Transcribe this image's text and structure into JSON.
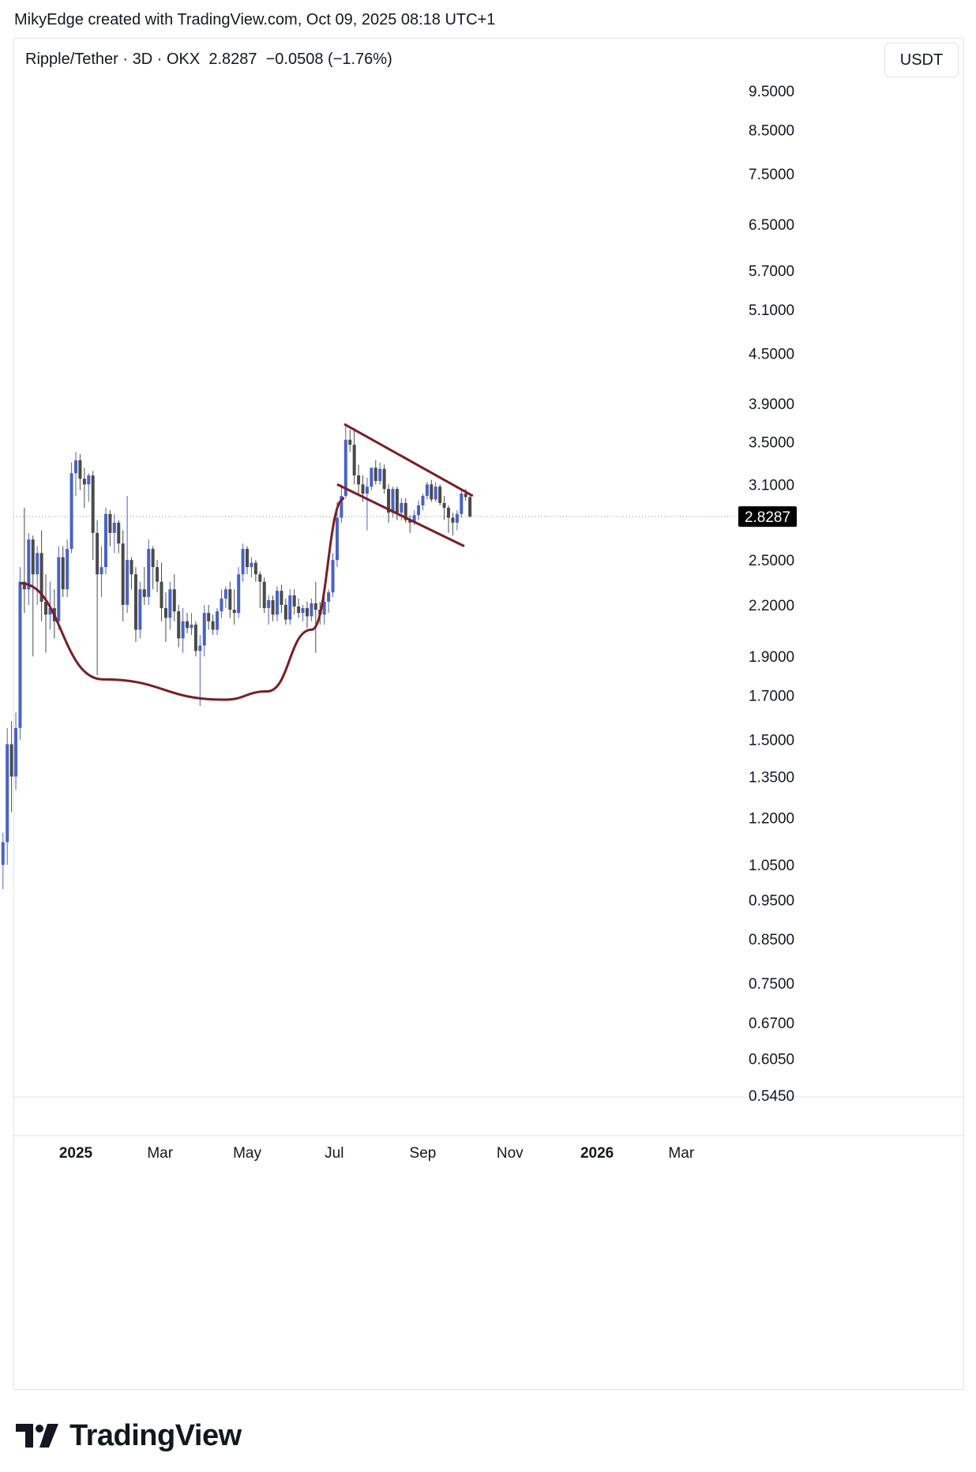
{
  "attribution": "MikyEdge created with TradingView.com, Oct 09, 2025 08:18 UTC+1",
  "legend": {
    "symbol": "Ripple/Tether · 3D · OKX",
    "last": "2.8287",
    "change": "−0.0508 (−1.76%)"
  },
  "currency_button": "USDT",
  "brand": "TradingView",
  "colors": {
    "up": "#4a62c4",
    "down": "#4a4a4a",
    "pattern": "#7a1e24",
    "price_label_bg": "#000000"
  },
  "chart_data": {
    "type": "candlestick",
    "scale": "log",
    "ylim": [
      0.545,
      9.5
    ],
    "y_ticks": [
      "9.5000",
      "8.5000",
      "7.5000",
      "6.5000",
      "5.7000",
      "5.1000",
      "4.5000",
      "3.9000",
      "3.5000",
      "3.1000",
      "2.5000",
      "2.2000",
      "1.9000",
      "1.7000",
      "1.5000",
      "1.3500",
      "1.2000",
      "1.0500",
      "0.9500",
      "0.8500",
      "0.7500",
      "0.6700",
      "0.6050",
      "0.5450"
    ],
    "x_ticks": [
      {
        "label": "2025",
        "date": "2025-01-01",
        "bold": true
      },
      {
        "label": "Mar",
        "date": "2025-03-01",
        "bold": false
      },
      {
        "label": "May",
        "date": "2025-05-01",
        "bold": false
      },
      {
        "label": "Jul",
        "date": "2025-07-01",
        "bold": false
      },
      {
        "label": "Sep",
        "date": "2025-09-01",
        "bold": false
      },
      {
        "label": "Nov",
        "date": "2025-11-01",
        "bold": false
      },
      {
        "label": "2026",
        "date": "2026-01-01",
        "bold": true
      },
      {
        "label": "Mar",
        "date": "2026-03-01",
        "bold": false
      }
    ],
    "last_price": 2.8287,
    "last_price_label": "2.8287",
    "candles": [
      {
        "date": "2024-11-11",
        "open": 1.05,
        "high": 1.15,
        "low": 0.98,
        "close": 1.12
      },
      {
        "date": "2024-11-14",
        "open": 1.12,
        "high": 1.55,
        "low": 1.05,
        "close": 1.48
      },
      {
        "date": "2024-11-17",
        "open": 1.48,
        "high": 1.58,
        "low": 1.22,
        "close": 1.35
      },
      {
        "date": "2024-11-20",
        "open": 1.35,
        "high": 1.62,
        "low": 1.3,
        "close": 1.55
      },
      {
        "date": "2024-11-23",
        "open": 1.55,
        "high": 2.45,
        "low": 1.5,
        "close": 2.35
      },
      {
        "date": "2024-11-26",
        "open": 2.35,
        "high": 2.9,
        "low": 2.15,
        "close": 2.3
      },
      {
        "date": "2024-11-29",
        "open": 2.3,
        "high": 2.7,
        "low": 2.2,
        "close": 2.65
      },
      {
        "date": "2024-12-02",
        "open": 2.65,
        "high": 2.68,
        "low": 1.9,
        "close": 2.4
      },
      {
        "date": "2024-12-05",
        "open": 2.4,
        "high": 2.6,
        "low": 2.2,
        "close": 2.55
      },
      {
        "date": "2024-12-08",
        "open": 2.55,
        "high": 2.72,
        "low": 2.1,
        "close": 2.22
      },
      {
        "date": "2024-12-11",
        "open": 2.22,
        "high": 2.4,
        "low": 1.92,
        "close": 2.14
      },
      {
        "date": "2024-12-14",
        "open": 2.14,
        "high": 2.35,
        "low": 2.05,
        "close": 2.18
      },
      {
        "date": "2024-12-17",
        "open": 2.18,
        "high": 2.3,
        "low": 2.0,
        "close": 2.1
      },
      {
        "date": "2024-12-20",
        "open": 2.1,
        "high": 2.6,
        "low": 2.05,
        "close": 2.52
      },
      {
        "date": "2024-12-23",
        "open": 2.52,
        "high": 2.6,
        "low": 2.25,
        "close": 2.3
      },
      {
        "date": "2024-12-26",
        "open": 2.3,
        "high": 2.65,
        "low": 2.25,
        "close": 2.58
      },
      {
        "date": "2024-12-29",
        "open": 2.58,
        "high": 3.3,
        "low": 2.55,
        "close": 3.2
      },
      {
        "date": "2025-01-01",
        "open": 3.2,
        "high": 3.4,
        "low": 3.0,
        "close": 3.32
      },
      {
        "date": "2025-01-04",
        "open": 3.32,
        "high": 3.38,
        "low": 3.05,
        "close": 3.15
      },
      {
        "date": "2025-01-07",
        "open": 3.15,
        "high": 3.25,
        "low": 2.9,
        "close": 3.1
      },
      {
        "date": "2025-01-10",
        "open": 3.1,
        "high": 3.2,
        "low": 2.95,
        "close": 3.18
      },
      {
        "date": "2025-01-13",
        "open": 3.18,
        "high": 3.22,
        "low": 2.5,
        "close": 2.7
      },
      {
        "date": "2025-01-16",
        "open": 2.7,
        "high": 2.8,
        "low": 1.8,
        "close": 2.4
      },
      {
        "date": "2025-01-19",
        "open": 2.4,
        "high": 2.6,
        "low": 2.25,
        "close": 2.45
      },
      {
        "date": "2025-01-22",
        "open": 2.45,
        "high": 2.9,
        "low": 2.4,
        "close": 2.85
      },
      {
        "date": "2025-01-25",
        "open": 2.85,
        "high": 2.88,
        "low": 2.6,
        "close": 2.7
      },
      {
        "date": "2025-01-28",
        "open": 2.7,
        "high": 2.85,
        "low": 2.55,
        "close": 2.78
      },
      {
        "date": "2025-01-31",
        "open": 2.78,
        "high": 2.8,
        "low": 2.55,
        "close": 2.62
      },
      {
        "date": "2025-02-03",
        "open": 2.62,
        "high": 2.72,
        "low": 2.1,
        "close": 2.2
      },
      {
        "date": "2025-02-06",
        "open": 2.2,
        "high": 3.0,
        "low": 2.15,
        "close": 2.5
      },
      {
        "date": "2025-02-09",
        "open": 2.5,
        "high": 2.52,
        "low": 2.3,
        "close": 2.4
      },
      {
        "date": "2025-02-12",
        "open": 2.4,
        "high": 2.45,
        "low": 1.98,
        "close": 2.05
      },
      {
        "date": "2025-02-15",
        "open": 2.05,
        "high": 2.35,
        "low": 2.0,
        "close": 2.3
      },
      {
        "date": "2025-02-18",
        "open": 2.3,
        "high": 2.45,
        "low": 2.2,
        "close": 2.25
      },
      {
        "date": "2025-02-21",
        "open": 2.25,
        "high": 2.65,
        "low": 2.2,
        "close": 2.58
      },
      {
        "date": "2025-02-24",
        "open": 2.58,
        "high": 2.6,
        "low": 2.3,
        "close": 2.45
      },
      {
        "date": "2025-02-27",
        "open": 2.45,
        "high": 2.5,
        "low": 2.28,
        "close": 2.35
      },
      {
        "date": "2025-03-02",
        "open": 2.35,
        "high": 2.48,
        "low": 2.1,
        "close": 2.18
      },
      {
        "date": "2025-03-05",
        "open": 2.18,
        "high": 2.28,
        "low": 1.98,
        "close": 2.12
      },
      {
        "date": "2025-03-08",
        "open": 2.12,
        "high": 2.35,
        "low": 2.05,
        "close": 2.3
      },
      {
        "date": "2025-03-11",
        "open": 2.3,
        "high": 2.4,
        "low": 2.1,
        "close": 2.16
      },
      {
        "date": "2025-03-14",
        "open": 2.16,
        "high": 2.2,
        "low": 1.95,
        "close": 2.0
      },
      {
        "date": "2025-03-17",
        "open": 2.0,
        "high": 2.18,
        "low": 1.92,
        "close": 2.1
      },
      {
        "date": "2025-03-20",
        "open": 2.1,
        "high": 2.15,
        "low": 2.03,
        "close": 2.06
      },
      {
        "date": "2025-03-23",
        "open": 2.06,
        "high": 2.15,
        "low": 2.02,
        "close": 2.08
      },
      {
        "date": "2025-03-26",
        "open": 2.08,
        "high": 2.1,
        "low": 1.9,
        "close": 1.93
      },
      {
        "date": "2025-03-29",
        "open": 1.93,
        "high": 2.02,
        "low": 1.65,
        "close": 1.96
      },
      {
        "date": "2025-04-01",
        "open": 1.96,
        "high": 2.2,
        "low": 1.9,
        "close": 2.15
      },
      {
        "date": "2025-04-04",
        "open": 2.15,
        "high": 2.2,
        "low": 2.05,
        "close": 2.1
      },
      {
        "date": "2025-04-07",
        "open": 2.1,
        "high": 2.14,
        "low": 2.02,
        "close": 2.05
      },
      {
        "date": "2025-04-10",
        "open": 2.05,
        "high": 2.18,
        "low": 2.02,
        "close": 2.16
      },
      {
        "date": "2025-04-13",
        "open": 2.16,
        "high": 2.3,
        "low": 2.12,
        "close": 2.24
      },
      {
        "date": "2025-04-16",
        "open": 2.24,
        "high": 2.32,
        "low": 2.18,
        "close": 2.3
      },
      {
        "date": "2025-04-19",
        "open": 2.3,
        "high": 2.35,
        "low": 2.12,
        "close": 2.17
      },
      {
        "date": "2025-04-22",
        "open": 2.17,
        "high": 2.3,
        "low": 2.08,
        "close": 2.15
      },
      {
        "date": "2025-04-25",
        "open": 2.15,
        "high": 2.45,
        "low": 2.12,
        "close": 2.4
      },
      {
        "date": "2025-04-28",
        "open": 2.4,
        "high": 2.62,
        "low": 2.35,
        "close": 2.58
      },
      {
        "date": "2025-05-01",
        "open": 2.58,
        "high": 2.6,
        "low": 2.4,
        "close": 2.45
      },
      {
        "date": "2025-05-04",
        "open": 2.45,
        "high": 2.52,
        "low": 2.38,
        "close": 2.48
      },
      {
        "date": "2025-05-07",
        "open": 2.48,
        "high": 2.5,
        "low": 2.35,
        "close": 2.4
      },
      {
        "date": "2025-05-10",
        "open": 2.4,
        "high": 2.42,
        "low": 2.18,
        "close": 2.35
      },
      {
        "date": "2025-05-13",
        "open": 2.35,
        "high": 2.38,
        "low": 2.15,
        "close": 2.18
      },
      {
        "date": "2025-05-16",
        "open": 2.18,
        "high": 2.26,
        "low": 2.08,
        "close": 2.23
      },
      {
        "date": "2025-05-19",
        "open": 2.23,
        "high": 2.26,
        "low": 2.1,
        "close": 2.14
      },
      {
        "date": "2025-05-22",
        "open": 2.14,
        "high": 2.32,
        "low": 2.1,
        "close": 2.29
      },
      {
        "date": "2025-05-25",
        "open": 2.29,
        "high": 2.33,
        "low": 2.15,
        "close": 2.2
      },
      {
        "date": "2025-05-28",
        "open": 2.2,
        "high": 2.24,
        "low": 2.08,
        "close": 2.11
      },
      {
        "date": "2025-05-31",
        "open": 2.11,
        "high": 2.3,
        "low": 2.08,
        "close": 2.26
      },
      {
        "date": "2025-06-03",
        "open": 2.26,
        "high": 2.3,
        "low": 2.14,
        "close": 2.19
      },
      {
        "date": "2025-06-06",
        "open": 2.19,
        "high": 2.24,
        "low": 2.12,
        "close": 2.15
      },
      {
        "date": "2025-06-09",
        "open": 2.15,
        "high": 2.2,
        "low": 2.1,
        "close": 2.18
      },
      {
        "date": "2025-06-12",
        "open": 2.18,
        "high": 2.22,
        "low": 2.06,
        "close": 2.13
      },
      {
        "date": "2025-06-15",
        "open": 2.13,
        "high": 2.24,
        "low": 2.1,
        "close": 2.21
      },
      {
        "date": "2025-06-18",
        "open": 2.21,
        "high": 2.35,
        "low": 1.92,
        "close": 2.17
      },
      {
        "date": "2025-06-21",
        "open": 2.17,
        "high": 2.22,
        "low": 2.08,
        "close": 2.14
      },
      {
        "date": "2025-06-24",
        "open": 2.14,
        "high": 2.25,
        "low": 2.08,
        "close": 2.22
      },
      {
        "date": "2025-06-27",
        "open": 2.22,
        "high": 2.3,
        "low": 2.15,
        "close": 2.28
      },
      {
        "date": "2025-06-30",
        "open": 2.28,
        "high": 2.55,
        "low": 2.25,
        "close": 2.5
      },
      {
        "date": "2025-07-03",
        "open": 2.5,
        "high": 2.95,
        "low": 2.45,
        "close": 2.82
      },
      {
        "date": "2025-07-06",
        "open": 2.82,
        "high": 3.1,
        "low": 2.78,
        "close": 3.0
      },
      {
        "date": "2025-07-09",
        "open": 3.0,
        "high": 3.66,
        "low": 2.98,
        "close": 3.52
      },
      {
        "date": "2025-07-12",
        "open": 3.52,
        "high": 3.62,
        "low": 3.4,
        "close": 3.47
      },
      {
        "date": "2025-07-15",
        "open": 3.47,
        "high": 3.64,
        "low": 3.1,
        "close": 3.18
      },
      {
        "date": "2025-07-18",
        "open": 3.18,
        "high": 3.28,
        "low": 3.0,
        "close": 3.1
      },
      {
        "date": "2025-07-21",
        "open": 3.1,
        "high": 3.18,
        "low": 2.95,
        "close": 3.02
      },
      {
        "date": "2025-07-24",
        "open": 3.02,
        "high": 3.16,
        "low": 2.72,
        "close": 3.08
      },
      {
        "date": "2025-07-27",
        "open": 3.08,
        "high": 3.25,
        "low": 3.05,
        "close": 3.25
      },
      {
        "date": "2025-07-30",
        "open": 3.25,
        "high": 3.32,
        "low": 3.1,
        "close": 3.13
      },
      {
        "date": "2025-08-02",
        "open": 3.13,
        "high": 3.3,
        "low": 3.1,
        "close": 3.24
      },
      {
        "date": "2025-08-05",
        "open": 3.24,
        "high": 3.28,
        "low": 3.02,
        "close": 3.06
      },
      {
        "date": "2025-08-08",
        "open": 3.06,
        "high": 3.1,
        "low": 2.78,
        "close": 2.86
      },
      {
        "date": "2025-08-11",
        "open": 2.86,
        "high": 3.08,
        "low": 2.82,
        "close": 3.06
      },
      {
        "date": "2025-08-14",
        "open": 3.06,
        "high": 3.08,
        "low": 2.8,
        "close": 2.86
      },
      {
        "date": "2025-08-17",
        "open": 2.86,
        "high": 2.98,
        "low": 2.8,
        "close": 2.94
      },
      {
        "date": "2025-08-20",
        "open": 2.94,
        "high": 2.98,
        "low": 2.78,
        "close": 2.8
      },
      {
        "date": "2025-08-23",
        "open": 2.8,
        "high": 2.84,
        "low": 2.7,
        "close": 2.78
      },
      {
        "date": "2025-08-26",
        "open": 2.78,
        "high": 2.88,
        "low": 2.76,
        "close": 2.84
      },
      {
        "date": "2025-08-29",
        "open": 2.84,
        "high": 2.96,
        "low": 2.8,
        "close": 2.92
      },
      {
        "date": "2025-09-01",
        "open": 2.92,
        "high": 3.02,
        "low": 2.88,
        "close": 3.0
      },
      {
        "date": "2025-09-04",
        "open": 3.0,
        "high": 3.12,
        "low": 2.97,
        "close": 3.1
      },
      {
        "date": "2025-09-07",
        "open": 3.1,
        "high": 3.14,
        "low": 2.95,
        "close": 2.97
      },
      {
        "date": "2025-09-10",
        "open": 2.97,
        "high": 3.12,
        "low": 2.95,
        "close": 3.08
      },
      {
        "date": "2025-09-13",
        "open": 3.08,
        "high": 3.1,
        "low": 2.92,
        "close": 2.94
      },
      {
        "date": "2025-09-16",
        "open": 2.94,
        "high": 3.0,
        "low": 2.8,
        "close": 2.9
      },
      {
        "date": "2025-09-19",
        "open": 2.9,
        "high": 2.92,
        "low": 2.7,
        "close": 2.82
      },
      {
        "date": "2025-09-22",
        "open": 2.82,
        "high": 2.86,
        "low": 2.68,
        "close": 2.78
      },
      {
        "date": "2025-09-25",
        "open": 2.78,
        "high": 2.88,
        "low": 2.72,
        "close": 2.85
      },
      {
        "date": "2025-09-28",
        "open": 2.85,
        "high": 3.05,
        "low": 2.82,
        "close": 3.02
      },
      {
        "date": "2025-10-01",
        "open": 3.02,
        "high": 3.06,
        "low": 2.96,
        "close": 2.99
      },
      {
        "date": "2025-10-04",
        "open": 2.99,
        "high": 3.02,
        "low": 2.82,
        "close": 2.83
      }
    ],
    "drawings": [
      {
        "type": "cup-curve",
        "points": [
          [
            "2024-11-23",
            2.34
          ],
          [
            "2025-01-20",
            1.78
          ],
          [
            "2025-04-15",
            1.68
          ],
          [
            "2025-05-15",
            1.72
          ],
          [
            "2025-06-15",
            2.05
          ],
          [
            "2025-07-08",
            2.98
          ]
        ]
      },
      {
        "type": "trendline",
        "name": "channel-upper",
        "from": [
          "2025-07-08",
          3.68
        ],
        "to": [
          "2025-10-06",
          3.0
        ]
      },
      {
        "type": "trendline",
        "name": "channel-lower",
        "from": [
          "2025-07-03",
          3.1
        ],
        "to": [
          "2025-09-30",
          2.6
        ]
      }
    ]
  }
}
